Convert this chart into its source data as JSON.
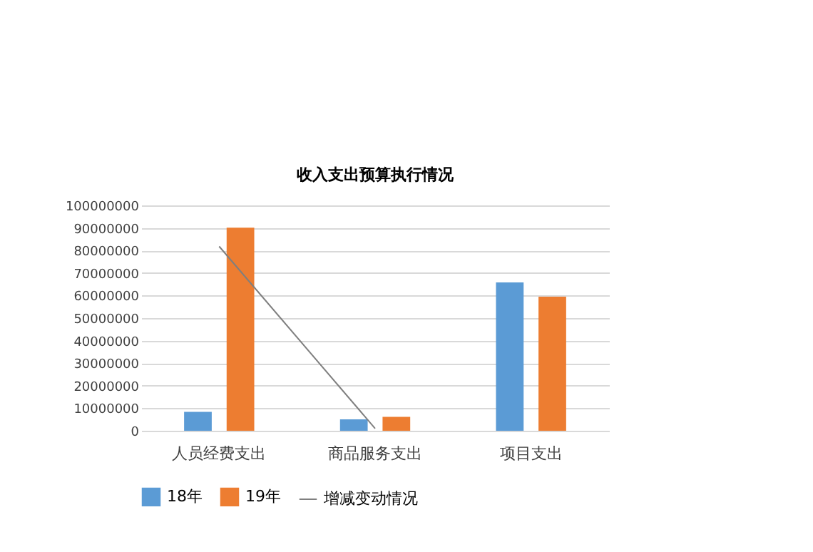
{
  "chart_data": {
    "type": "bar",
    "title": "收入支出预算执行情况",
    "categories": [
      "人员经费支出",
      "商品服务支出",
      "项目支出"
    ],
    "series": [
      {
        "name": "18年",
        "color": "#5b9bd5",
        "values": [
          8400000,
          5100000,
          65800000
        ]
      },
      {
        "name": "19年",
        "color": "#ed7d31",
        "values": [
          90100000,
          6200000,
          59500000
        ]
      },
      {
        "name": "增减变动情况",
        "type": "line",
        "color": "#7f7f7f",
        "values": [
          81800000,
          1000000,
          null
        ]
      }
    ],
    "ylim": [
      0,
      100000000
    ],
    "yticks": [
      0,
      10000000,
      20000000,
      30000000,
      40000000,
      50000000,
      60000000,
      70000000,
      80000000,
      90000000,
      100000000
    ],
    "grid": "y",
    "legend": "bottom"
  }
}
